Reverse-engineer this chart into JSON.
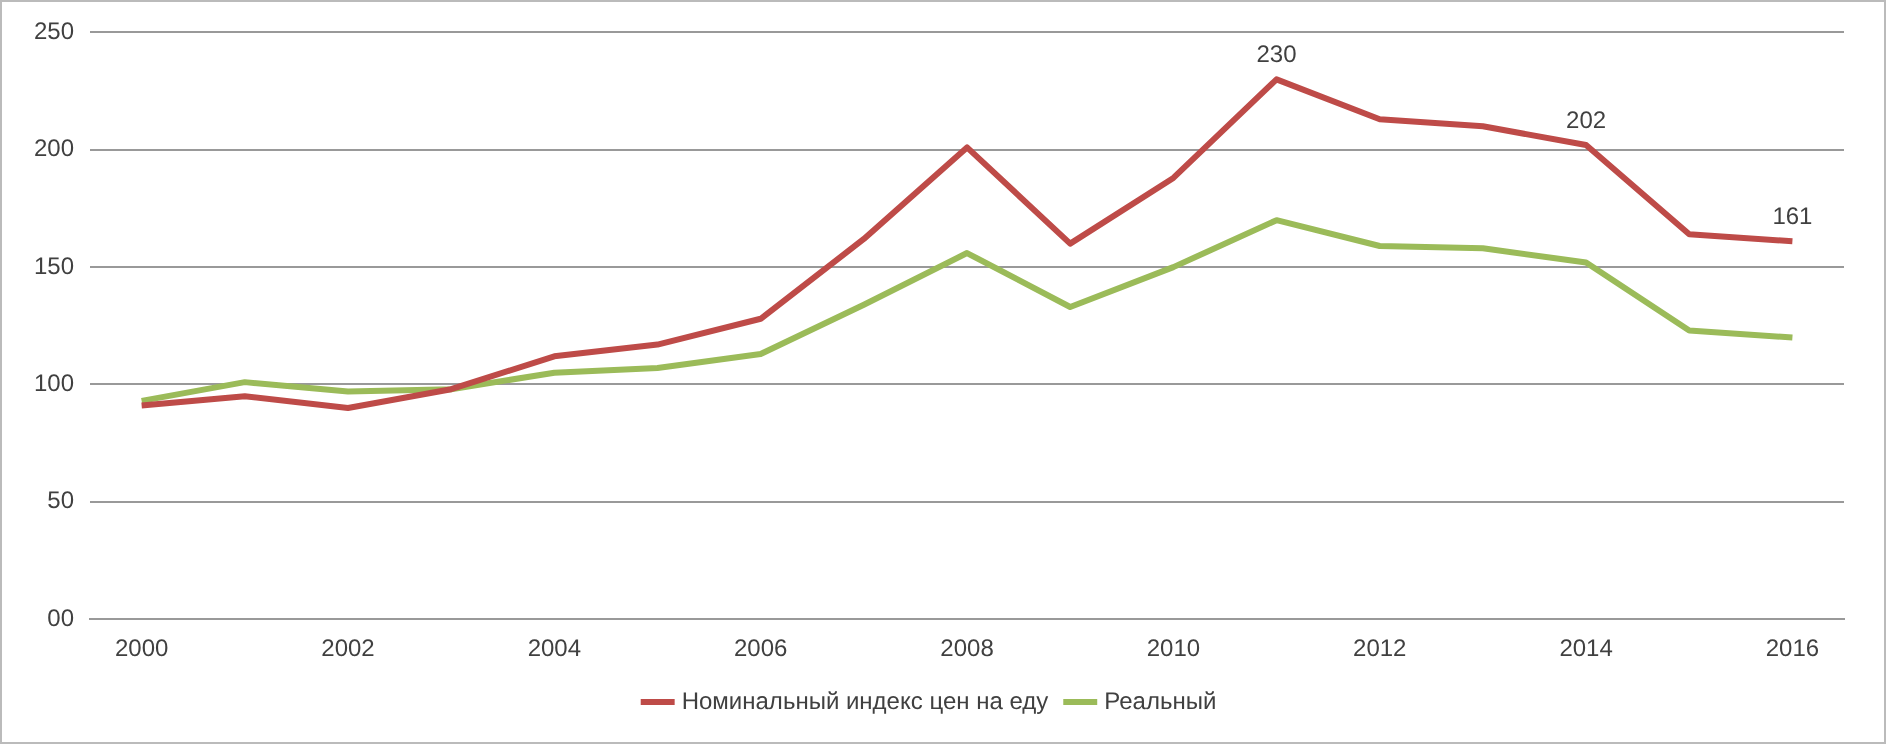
{
  "chart_data": {
    "type": "line",
    "categories": [
      "2000",
      null,
      "2002",
      null,
      "2004",
      null,
      "2006",
      null,
      "2008",
      null,
      "2010",
      null,
      "2012",
      null,
      "2014",
      null,
      "2016"
    ],
    "series": [
      {
        "name": "Номинальный индекс цен на еду",
        "color": "#be4b48",
        "values": [
          91,
          95,
          90,
          98,
          112,
          117,
          128,
          162,
          201,
          160,
          188,
          230,
          213,
          210,
          202,
          164,
          161
        ],
        "value_labels": [
          null,
          null,
          null,
          null,
          null,
          null,
          null,
          null,
          null,
          null,
          null,
          "230",
          null,
          null,
          "202",
          null,
          "161"
        ]
      },
      {
        "name": "Реальный",
        "color": "#9bbb59",
        "values": [
          93,
          101,
          97,
          98,
          105,
          107,
          113,
          134,
          156,
          133,
          150,
          170,
          159,
          158,
          152,
          123,
          120
        ]
      }
    ],
    "ylim": [
      0,
      250
    ],
    "yticks": [
      {
        "value": 0,
        "label": "00"
      },
      50,
      100,
      150,
      200,
      250
    ],
    "grid": "y",
    "legend": "bottom",
    "marker": "none",
    "line_style": "solid"
  }
}
